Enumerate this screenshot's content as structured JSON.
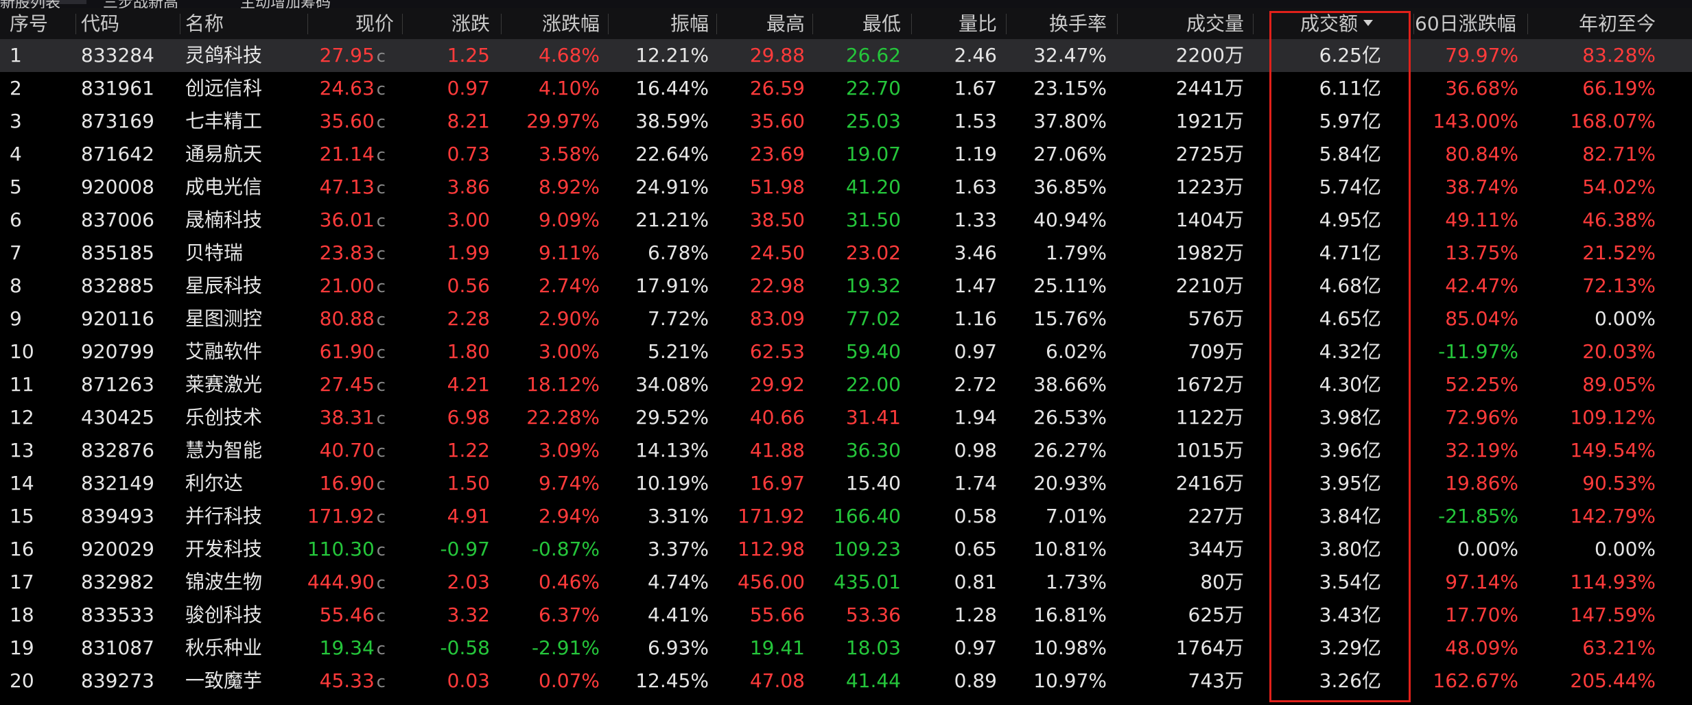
{
  "top_tabs": [
    "新股列表",
    "三步战新高",
    "主动增加筹码"
  ],
  "columns": [
    "序号",
    "代码",
    "名称",
    "现价",
    "涨跌",
    "涨跌幅",
    "振幅",
    "最高",
    "最低",
    "量比",
    "换手率",
    "成交量",
    "成交额",
    "60日涨跌幅",
    "年初至今"
  ],
  "sorted_column": "成交额",
  "price_suffix": "c",
  "colors": {
    "up": "#ff3b3b",
    "down": "#25c63b",
    "neutral": "#e6e6e6",
    "highlight_box": "#e0201a",
    "selected_row": "#2b2b2e"
  },
  "rows": [
    {
      "no": "1",
      "code": "833284",
      "name": "灵鸽科技",
      "price": "27.95",
      "chg": "1.25",
      "pct": "4.68%",
      "amp": "12.21%",
      "high": "29.88",
      "low": "26.62",
      "vr": "2.46",
      "turn": "32.47%",
      "vol": "2200万",
      "amt": "6.25亿",
      "d60": "79.97%",
      "ytd": "83.28%",
      "c": {
        "price": "up",
        "chg": "up",
        "pct": "up",
        "high": "up",
        "low": "down",
        "d60": "up",
        "ytd": "up"
      }
    },
    {
      "no": "2",
      "code": "831961",
      "name": "创远信科",
      "price": "24.63",
      "chg": "0.97",
      "pct": "4.10%",
      "amp": "16.44%",
      "high": "26.59",
      "low": "22.70",
      "vr": "1.67",
      "turn": "23.15%",
      "vol": "2441万",
      "amt": "6.11亿",
      "d60": "36.68%",
      "ytd": "66.19%",
      "c": {
        "price": "up",
        "chg": "up",
        "pct": "up",
        "high": "up",
        "low": "down",
        "d60": "up",
        "ytd": "up"
      }
    },
    {
      "no": "3",
      "code": "873169",
      "name": "七丰精工",
      "price": "35.60",
      "chg": "8.21",
      "pct": "29.97%",
      "amp": "38.59%",
      "high": "35.60",
      "low": "25.03",
      "vr": "1.53",
      "turn": "37.80%",
      "vol": "1921万",
      "amt": "5.97亿",
      "d60": "143.00%",
      "ytd": "168.07%",
      "c": {
        "price": "up",
        "chg": "up",
        "pct": "up",
        "high": "up",
        "low": "down",
        "d60": "up",
        "ytd": "up"
      }
    },
    {
      "no": "4",
      "code": "871642",
      "name": "通易航天",
      "price": "21.14",
      "chg": "0.73",
      "pct": "3.58%",
      "amp": "22.64%",
      "high": "23.69",
      "low": "19.07",
      "vr": "1.19",
      "turn": "27.06%",
      "vol": "2725万",
      "amt": "5.84亿",
      "d60": "80.84%",
      "ytd": "82.71%",
      "c": {
        "price": "up",
        "chg": "up",
        "pct": "up",
        "high": "up",
        "low": "down",
        "d60": "up",
        "ytd": "up"
      }
    },
    {
      "no": "5",
      "code": "920008",
      "name": "成电光信",
      "price": "47.13",
      "chg": "3.86",
      "pct": "8.92%",
      "amp": "24.91%",
      "high": "51.98",
      "low": "41.20",
      "vr": "1.63",
      "turn": "36.85%",
      "vol": "1223万",
      "amt": "5.74亿",
      "d60": "38.74%",
      "ytd": "54.02%",
      "c": {
        "price": "up",
        "chg": "up",
        "pct": "up",
        "high": "up",
        "low": "down",
        "d60": "up",
        "ytd": "up"
      }
    },
    {
      "no": "6",
      "code": "837006",
      "name": "晟楠科技",
      "price": "36.01",
      "chg": "3.00",
      "pct": "9.09%",
      "amp": "21.21%",
      "high": "38.50",
      "low": "31.50",
      "vr": "1.33",
      "turn": "40.94%",
      "vol": "1404万",
      "amt": "4.95亿",
      "d60": "49.11%",
      "ytd": "46.38%",
      "c": {
        "price": "up",
        "chg": "up",
        "pct": "up",
        "high": "up",
        "low": "down",
        "d60": "up",
        "ytd": "up"
      }
    },
    {
      "no": "7",
      "code": "835185",
      "name": "贝特瑞",
      "price": "23.83",
      "chg": "1.99",
      "pct": "9.11%",
      "amp": "6.78%",
      "high": "24.50",
      "low": "23.02",
      "vr": "3.46",
      "turn": "1.79%",
      "vol": "1982万",
      "amt": "4.71亿",
      "d60": "13.75%",
      "ytd": "21.52%",
      "c": {
        "price": "up",
        "chg": "up",
        "pct": "up",
        "high": "up",
        "low": "up",
        "d60": "up",
        "ytd": "up"
      }
    },
    {
      "no": "8",
      "code": "832885",
      "name": "星辰科技",
      "price": "21.00",
      "chg": "0.56",
      "pct": "2.74%",
      "amp": "17.91%",
      "high": "22.98",
      "low": "19.32",
      "vr": "1.47",
      "turn": "25.11%",
      "vol": "2210万",
      "amt": "4.68亿",
      "d60": "42.47%",
      "ytd": "72.13%",
      "c": {
        "price": "up",
        "chg": "up",
        "pct": "up",
        "high": "up",
        "low": "down",
        "d60": "up",
        "ytd": "up"
      }
    },
    {
      "no": "9",
      "code": "920116",
      "name": "星图测控",
      "price": "80.88",
      "chg": "2.28",
      "pct": "2.90%",
      "amp": "7.72%",
      "high": "83.09",
      "low": "77.02",
      "vr": "1.16",
      "turn": "15.76%",
      "vol": "576万",
      "amt": "4.65亿",
      "d60": "85.04%",
      "ytd": "0.00%",
      "c": {
        "price": "up",
        "chg": "up",
        "pct": "up",
        "high": "up",
        "low": "down",
        "d60": "up",
        "ytd": "neutral"
      }
    },
    {
      "no": "10",
      "code": "920799",
      "name": "艾融软件",
      "price": "61.90",
      "chg": "1.80",
      "pct": "3.00%",
      "amp": "5.21%",
      "high": "62.53",
      "low": "59.40",
      "vr": "0.97",
      "turn": "6.02%",
      "vol": "709万",
      "amt": "4.32亿",
      "d60": "-11.97%",
      "ytd": "20.03%",
      "c": {
        "price": "up",
        "chg": "up",
        "pct": "up",
        "high": "up",
        "low": "down",
        "d60": "down",
        "ytd": "up"
      }
    },
    {
      "no": "11",
      "code": "871263",
      "name": "莱赛激光",
      "price": "27.45",
      "chg": "4.21",
      "pct": "18.12%",
      "amp": "34.08%",
      "high": "29.92",
      "low": "22.00",
      "vr": "2.72",
      "turn": "38.66%",
      "vol": "1672万",
      "amt": "4.30亿",
      "d60": "52.25%",
      "ytd": "89.05%",
      "c": {
        "price": "up",
        "chg": "up",
        "pct": "up",
        "high": "up",
        "low": "down",
        "d60": "up",
        "ytd": "up"
      }
    },
    {
      "no": "12",
      "code": "430425",
      "name": "乐创技术",
      "price": "38.31",
      "chg": "6.98",
      "pct": "22.28%",
      "amp": "29.52%",
      "high": "40.66",
      "low": "31.41",
      "vr": "1.94",
      "turn": "26.53%",
      "vol": "1122万",
      "amt": "3.98亿",
      "d60": "72.96%",
      "ytd": "109.12%",
      "c": {
        "price": "up",
        "chg": "up",
        "pct": "up",
        "high": "up",
        "low": "up",
        "d60": "up",
        "ytd": "up"
      }
    },
    {
      "no": "13",
      "code": "832876",
      "name": "慧为智能",
      "price": "40.70",
      "chg": "1.22",
      "pct": "3.09%",
      "amp": "14.13%",
      "high": "41.88",
      "low": "36.30",
      "vr": "0.98",
      "turn": "26.27%",
      "vol": "1015万",
      "amt": "3.96亿",
      "d60": "32.19%",
      "ytd": "149.54%",
      "c": {
        "price": "up",
        "chg": "up",
        "pct": "up",
        "high": "up",
        "low": "down",
        "d60": "up",
        "ytd": "up"
      }
    },
    {
      "no": "14",
      "code": "832149",
      "name": "利尔达",
      "price": "16.90",
      "chg": "1.50",
      "pct": "9.74%",
      "amp": "10.19%",
      "high": "16.97",
      "low": "15.40",
      "vr": "1.74",
      "turn": "20.93%",
      "vol": "2416万",
      "amt": "3.95亿",
      "d60": "19.86%",
      "ytd": "90.53%",
      "c": {
        "price": "up",
        "chg": "up",
        "pct": "up",
        "high": "up",
        "low": "neutral",
        "d60": "up",
        "ytd": "up"
      }
    },
    {
      "no": "15",
      "code": "839493",
      "name": "并行科技",
      "price": "171.92",
      "chg": "4.91",
      "pct": "2.94%",
      "amp": "3.31%",
      "high": "171.92",
      "low": "166.40",
      "vr": "0.58",
      "turn": "7.01%",
      "vol": "227万",
      "amt": "3.84亿",
      "d60": "-21.85%",
      "ytd": "142.79%",
      "c": {
        "price": "up",
        "chg": "up",
        "pct": "up",
        "high": "up",
        "low": "down",
        "d60": "down",
        "ytd": "up"
      }
    },
    {
      "no": "16",
      "code": "920029",
      "name": "开发科技",
      "price": "110.30",
      "chg": "-0.97",
      "pct": "-0.87%",
      "amp": "3.37%",
      "high": "112.98",
      "low": "109.23",
      "vr": "0.65",
      "turn": "10.81%",
      "vol": "344万",
      "amt": "3.80亿",
      "d60": "0.00%",
      "ytd": "0.00%",
      "c": {
        "price": "down",
        "chg": "down",
        "pct": "down",
        "high": "up",
        "low": "down",
        "d60": "neutral",
        "ytd": "neutral"
      }
    },
    {
      "no": "17",
      "code": "832982",
      "name": "锦波生物",
      "price": "444.90",
      "chg": "2.03",
      "pct": "0.46%",
      "amp": "4.74%",
      "high": "456.00",
      "low": "435.01",
      "vr": "0.81",
      "turn": "1.73%",
      "vol": "80万",
      "amt": "3.54亿",
      "d60": "97.14%",
      "ytd": "114.93%",
      "c": {
        "price": "up",
        "chg": "up",
        "pct": "up",
        "high": "up",
        "low": "down",
        "d60": "up",
        "ytd": "up"
      }
    },
    {
      "no": "18",
      "code": "833533",
      "name": "骏创科技",
      "price": "55.46",
      "chg": "3.32",
      "pct": "6.37%",
      "amp": "4.41%",
      "high": "55.66",
      "low": "53.36",
      "vr": "1.28",
      "turn": "16.81%",
      "vol": "625万",
      "amt": "3.43亿",
      "d60": "17.70%",
      "ytd": "147.59%",
      "c": {
        "price": "up",
        "chg": "up",
        "pct": "up",
        "high": "up",
        "low": "up",
        "d60": "up",
        "ytd": "up"
      }
    },
    {
      "no": "19",
      "code": "831087",
      "name": "秋乐种业",
      "price": "19.34",
      "chg": "-0.58",
      "pct": "-2.91%",
      "amp": "6.93%",
      "high": "19.41",
      "low": "18.03",
      "vr": "0.97",
      "turn": "10.98%",
      "vol": "1764万",
      "amt": "3.29亿",
      "d60": "48.09%",
      "ytd": "63.21%",
      "c": {
        "price": "down",
        "chg": "down",
        "pct": "down",
        "high": "down",
        "low": "down",
        "d60": "up",
        "ytd": "up"
      }
    },
    {
      "no": "20",
      "code": "839273",
      "name": "一致魔芋",
      "price": "45.33",
      "chg": "0.03",
      "pct": "0.07%",
      "amp": "12.45%",
      "high": "47.08",
      "low": "41.44",
      "vr": "0.89",
      "turn": "10.97%",
      "vol": "743万",
      "amt": "3.26亿",
      "d60": "162.67%",
      "ytd": "205.44%",
      "c": {
        "price": "up",
        "chg": "up",
        "pct": "up",
        "high": "up",
        "low": "down",
        "d60": "up",
        "ytd": "up"
      }
    }
  ]
}
